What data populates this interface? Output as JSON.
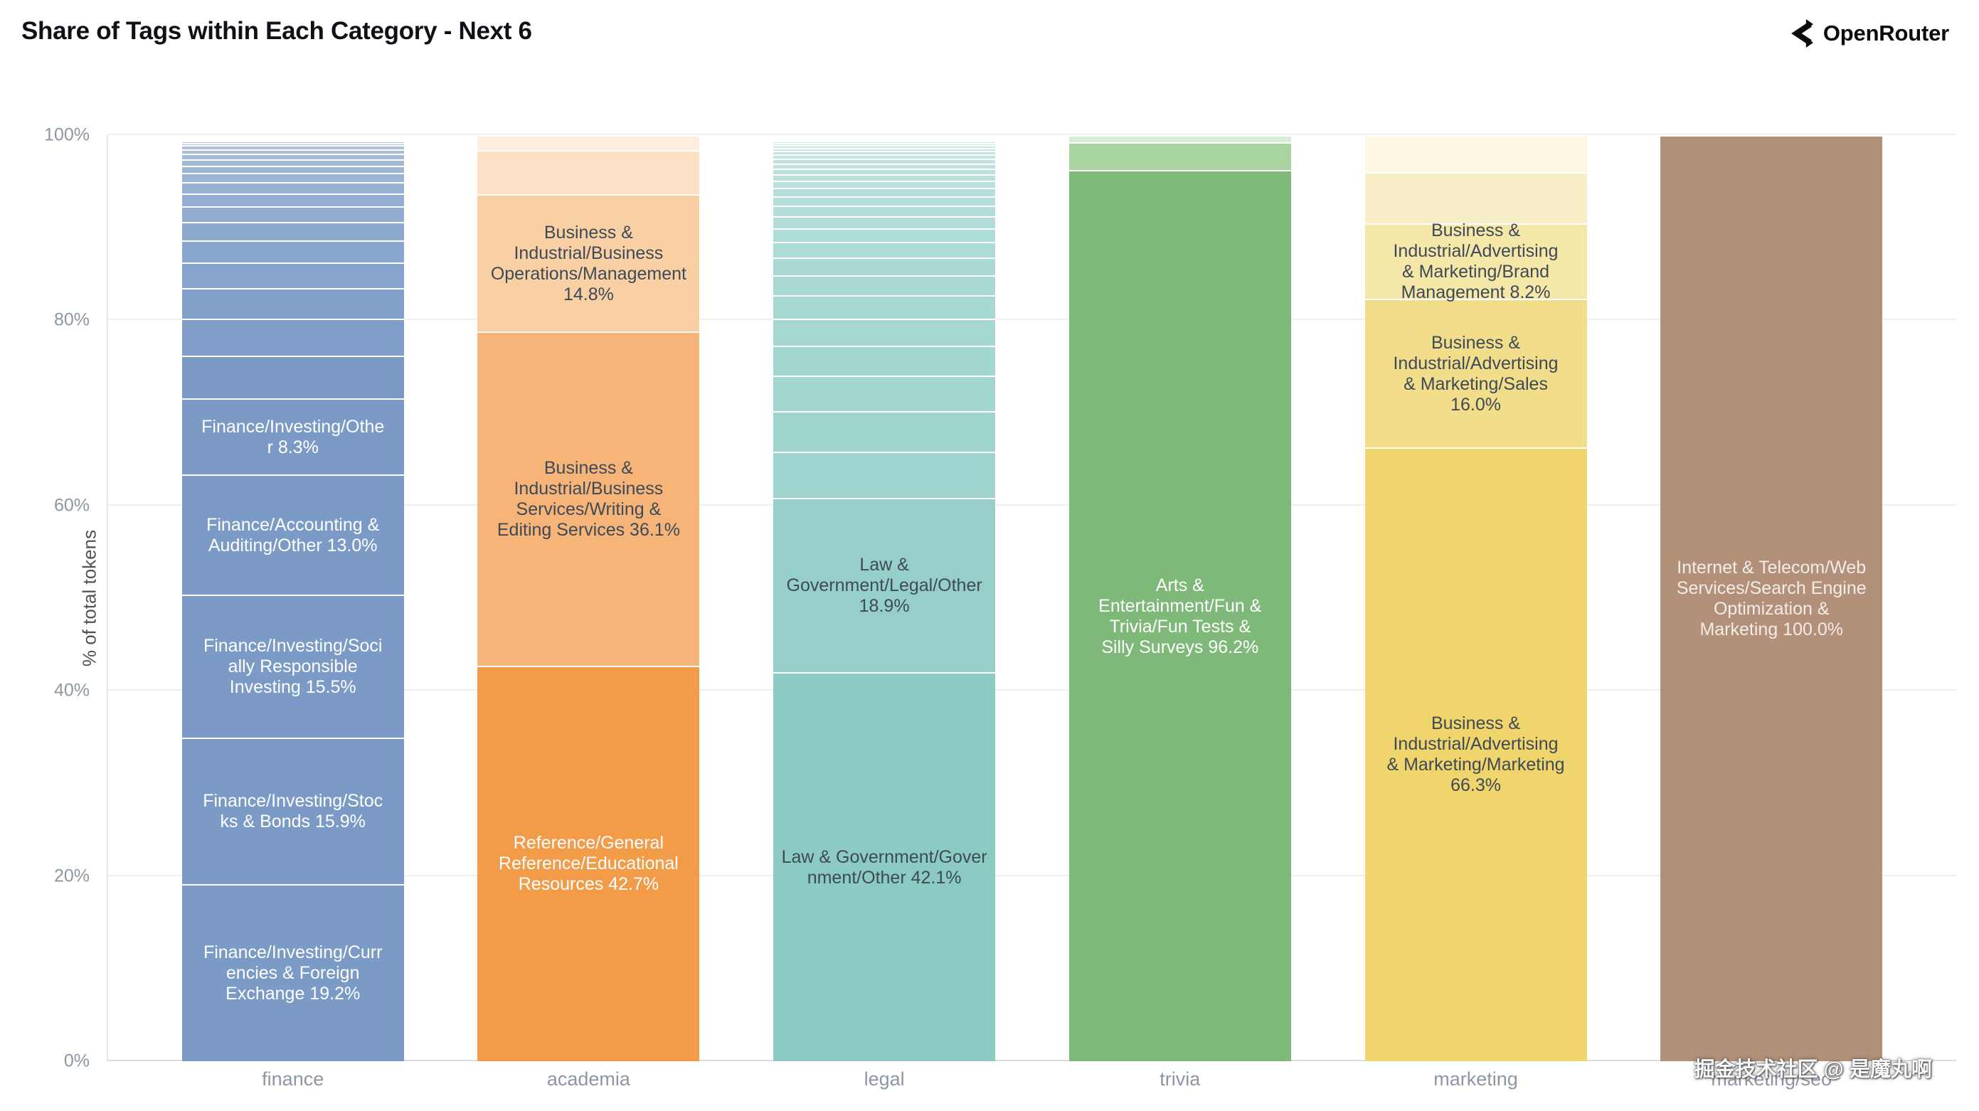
{
  "header": {
    "title": "Share of Tags within Each Category - Next 6",
    "brand_name": "OpenRouter"
  },
  "watermark": "掘金技术社区 @ 是魔丸啊",
  "chart_data": {
    "type": "bar",
    "stacked": true,
    "title": "Share of Tags within Each Category - Next 6",
    "xlabel": "",
    "ylabel": "% of total tokens",
    "ylim": [
      0,
      100
    ],
    "grid": "horizontal",
    "legend": "none",
    "yticks": [
      {
        "pct": 0,
        "label": "0%"
      },
      {
        "pct": 20,
        "label": "20%"
      },
      {
        "pct": 40,
        "label": "40%"
      },
      {
        "pct": 60,
        "label": "60%"
      },
      {
        "pct": 80,
        "label": "80%"
      },
      {
        "pct": 100,
        "label": "100%"
      }
    ],
    "categories": [
      "finance",
      "academia",
      "legal",
      "trivia",
      "marketing",
      "marketing/seo"
    ],
    "note": "segments listed bottom-to-top; entries without lines are small unlabeled tags",
    "bars": [
      {
        "category": "finance",
        "stripe_base": "#7b9bc6",
        "segments": [
          {
            "name": "Finance/Investing/Currencies & Foreign Exchange",
            "pct": 19.2,
            "color": "#7b9bc6",
            "tc": "#ffffff",
            "lines": [
              "Finance/Investing/Curr",
              "encies & Foreign",
              "Exchange 19.2%"
            ]
          },
          {
            "name": "Finance/Investing/Stocks & Bonds",
            "pct": 15.9,
            "color": "#7b9bc6",
            "tc": "#ffffff",
            "lines": [
              "Finance/Investing/Stoc",
              "ks & Bonds 15.9%"
            ]
          },
          {
            "name": "Finance/Investing/Socially Responsible Investing",
            "pct": 15.5,
            "color": "#7b9bc6",
            "tc": "#ffffff",
            "lines": [
              "Finance/Investing/Soci",
              "ally Responsible",
              "Investing 15.5%"
            ]
          },
          {
            "name": "Finance/Accounting & Auditing/Other",
            "pct": 13.0,
            "color": "#7b9bc6",
            "tc": "#ffffff",
            "lines": [
              "Finance/Accounting &",
              "Auditing/Other 13.0%"
            ]
          },
          {
            "name": "Finance/Investing/Other",
            "pct": 8.3,
            "color": "#7b9bc6",
            "tc": "#ffffff",
            "lines": [
              "Finance/Investing/Othe",
              "r 8.3%"
            ]
          },
          {
            "pct": 4.6
          },
          {
            "pct": 4.0
          },
          {
            "pct": 3.3
          },
          {
            "pct": 2.8
          },
          {
            "pct": 2.4
          },
          {
            "pct": 2.0
          },
          {
            "pct": 1.7
          },
          {
            "pct": 1.4
          },
          {
            "pct": 1.2
          },
          {
            "pct": 1.0
          },
          {
            "pct": 0.8
          },
          {
            "pct": 0.7
          },
          {
            "pct": 0.6
          },
          {
            "pct": 0.5
          },
          {
            "pct": 0.4
          },
          {
            "pct": 0.3
          },
          {
            "pct": 0.2
          },
          {
            "pct": 0.1
          },
          {
            "pct": 0.05
          },
          {
            "pct": 0.03
          },
          {
            "pct": 0.02
          }
        ]
      },
      {
        "category": "academia",
        "stripe_base": "#fbe0c4",
        "segments": [
          {
            "name": "Reference/General Reference/Educational Resources",
            "pct": 42.7,
            "color": "#f29b48",
            "tc": "#ffffff",
            "lines": [
              "Reference/General",
              "Reference/Educational",
              "Resources 42.7%"
            ]
          },
          {
            "name": "Business & Industrial/Business Services/Writing & Editing Services",
            "pct": 36.1,
            "color": "#f6b478",
            "tc": "#3e4a57",
            "lines": [
              "Business &",
              "Industrial/Business",
              "Services/Writing &",
              "Editing Services 36.1%"
            ]
          },
          {
            "name": "Business & Industrial/Business Operations/Management",
            "pct": 14.8,
            "color": "#f9d0a4",
            "tc": "#3e4a57",
            "lines": [
              "Business &",
              "Industrial/Business",
              "Operations/Management",
              "14.8%"
            ]
          },
          {
            "pct": 4.8,
            "color": "#fbe0c4"
          },
          {
            "pct": 1.6,
            "color": "#fdeedd"
          }
        ]
      },
      {
        "category": "legal",
        "stripe_base": "#9ed4cd",
        "segments": [
          {
            "name": "Law & Government/Government/Other",
            "pct": 42.1,
            "color": "#8bcbc3",
            "tc": "#3e4a57",
            "lines": [
              "Law & Government/Gover",
              "nment/Other 42.1%"
            ]
          },
          {
            "name": "Law & Government/Legal/Other",
            "pct": 18.9,
            "color": "#95cfc8",
            "tc": "#3e4a57",
            "lines": [
              "Law &",
              "Government/Legal/Other",
              "18.9%"
            ]
          },
          {
            "pct": 5.0
          },
          {
            "pct": 4.4
          },
          {
            "pct": 3.8
          },
          {
            "pct": 3.3
          },
          {
            "pct": 2.9
          },
          {
            "pct": 2.5
          },
          {
            "pct": 2.2
          },
          {
            "pct": 1.9
          },
          {
            "pct": 1.7
          },
          {
            "pct": 1.5
          },
          {
            "pct": 1.3
          },
          {
            "pct": 1.15
          },
          {
            "pct": 1.0
          },
          {
            "pct": 0.9
          },
          {
            "pct": 0.8
          },
          {
            "pct": 0.7
          },
          {
            "pct": 0.6
          },
          {
            "pct": 0.55
          },
          {
            "pct": 0.5
          },
          {
            "pct": 0.45
          },
          {
            "pct": 0.4
          },
          {
            "pct": 0.35
          },
          {
            "pct": 0.3
          },
          {
            "pct": 0.25
          },
          {
            "pct": 0.2
          },
          {
            "pct": 0.15
          },
          {
            "pct": 0.1
          },
          {
            "pct": 0.06
          },
          {
            "pct": 0.04
          }
        ]
      },
      {
        "category": "trivia",
        "stripe_base": "#a9d49f",
        "segments": [
          {
            "name": "Arts & Entertainment/Fun & Trivia/Fun Tests & Silly Surveys",
            "pct": 96.2,
            "color": "#7fb979",
            "tc": "#ffffff",
            "lines": [
              "Arts &",
              "Entertainment/Fun &",
              "Trivia/Fun Tests &",
              "Silly Surveys 96.2%"
            ]
          },
          {
            "pct": 3.0,
            "color": "#a9d49f"
          },
          {
            "pct": 0.8,
            "color": "#d9ecd4"
          }
        ]
      },
      {
        "category": "marketing",
        "stripe_base": "#f8efc8",
        "segments": [
          {
            "name": "Business & Industrial/Advertising & Marketing/Marketing",
            "pct": 66.3,
            "color": "#efd56c",
            "tc": "#3e4a57",
            "lines": [
              "Business &",
              "Industrial/Advertising",
              "& Marketing/Marketing",
              "66.3%"
            ]
          },
          {
            "name": "Business & Industrial/Advertising & Marketing/Sales",
            "pct": 16.0,
            "color": "#f2dd8b",
            "tc": "#3e4a57",
            "lines": [
              "Business &",
              "Industrial/Advertising",
              "& Marketing/Sales",
              "16.0%"
            ]
          },
          {
            "name": "Business & Industrial/Advertising & Marketing/Brand Management",
            "pct": 8.2,
            "color": "#f5e7a7",
            "tc": "#3e4a57",
            "lines": [
              "Business &",
              "Industrial/Advertising",
              "& Marketing/Brand",
              "Management 8.2%"
            ]
          },
          {
            "pct": 5.5,
            "color": "#f8efc8"
          },
          {
            "pct": 4.0,
            "color": "#fcf7e3"
          }
        ]
      },
      {
        "category": "marketing/seo",
        "stripe_base": "#b29079",
        "segments": [
          {
            "name": "Internet & Telecom/Web Services/Search Engine Optimization & Marketing",
            "pct": 100.0,
            "color": "#b29079",
            "tc": "#f3ece7",
            "lines": [
              "Internet & Telecom/Web",
              "Services/Search Engine",
              "Optimization &",
              "Marketing 100.0%"
            ]
          }
        ]
      }
    ]
  }
}
